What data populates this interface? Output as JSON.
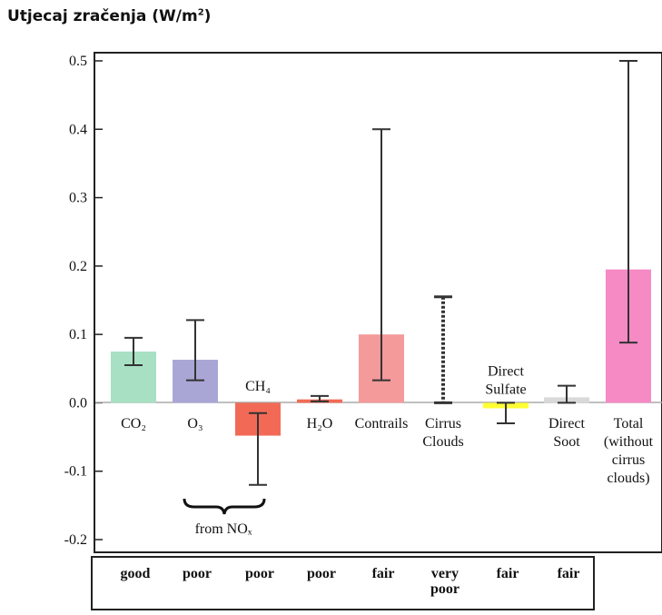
{
  "ytitle": "Utjecaj zračenja (W/m",
  "ytitle_sup": "2",
  "ytitle_end": ")",
  "chart_data": {
    "type": "bar",
    "title": "",
    "ylabel": "Utjecaj zračenja (W/m²)",
    "ylim": [
      -0.2,
      0.5
    ],
    "yticks": [
      "0.5",
      "0.4",
      "0.3",
      "0.2",
      "0.1",
      "0.0",
      "-0.1",
      "-0.2"
    ],
    "ytick_values": [
      0.5,
      0.4,
      0.3,
      0.2,
      0.1,
      0.0,
      -0.1,
      -0.2
    ],
    "grid": false,
    "categories": [
      {
        "label": [
          "CO₂"
        ],
        "value": 0.075,
        "err_low": 0.055,
        "err_high": 0.095,
        "color": "#a8e0c4",
        "label_pos": "below"
      },
      {
        "label": [
          "O₃"
        ],
        "value": 0.063,
        "err_low": 0.033,
        "err_high": 0.121,
        "color": "#a9a6d6",
        "label_pos": "below"
      },
      {
        "label": [
          "CH₄"
        ],
        "value": -0.048,
        "err_low": -0.12,
        "err_high": -0.015,
        "color": "#f26a56",
        "label_pos": "above"
      },
      {
        "label": [
          "H₂O"
        ],
        "value": 0.005,
        "err_low": 0.002,
        "err_high": 0.01,
        "color": "#f26a56",
        "label_pos": "below"
      },
      {
        "label": [
          "Contrails"
        ],
        "value": 0.1,
        "err_low": 0.033,
        "err_high": 0.4,
        "color": "#f59a9a",
        "label_pos": "below"
      },
      {
        "label": [
          "Cirrus",
          "Clouds"
        ],
        "value": 0.0,
        "err_low": 0.0,
        "err_high": 0.155,
        "color": "none",
        "dotted": true,
        "label_pos": "below"
      },
      {
        "label": [
          "Direct",
          "Sulfate"
        ],
        "value": -0.008,
        "err_low": -0.03,
        "err_high": 0.0,
        "color": "#ffff33",
        "label_pos": "above"
      },
      {
        "label": [
          "Direct",
          "Soot"
        ],
        "value": 0.008,
        "err_low": 0.0,
        "err_high": 0.025,
        "color": "#d9d9d9",
        "label_pos": "below"
      },
      {
        "label": [
          "Total",
          "(without",
          "cirrus",
          "clouds)"
        ],
        "value": 0.195,
        "err_low": 0.088,
        "err_high": 0.5,
        "color": "#f58ac4",
        "label_pos": "below"
      }
    ],
    "annotation": "from NOₓ",
    "confidence": [
      "good",
      "poor",
      "poor",
      "poor",
      "fair",
      "very poor",
      "fair",
      "fair"
    ]
  }
}
